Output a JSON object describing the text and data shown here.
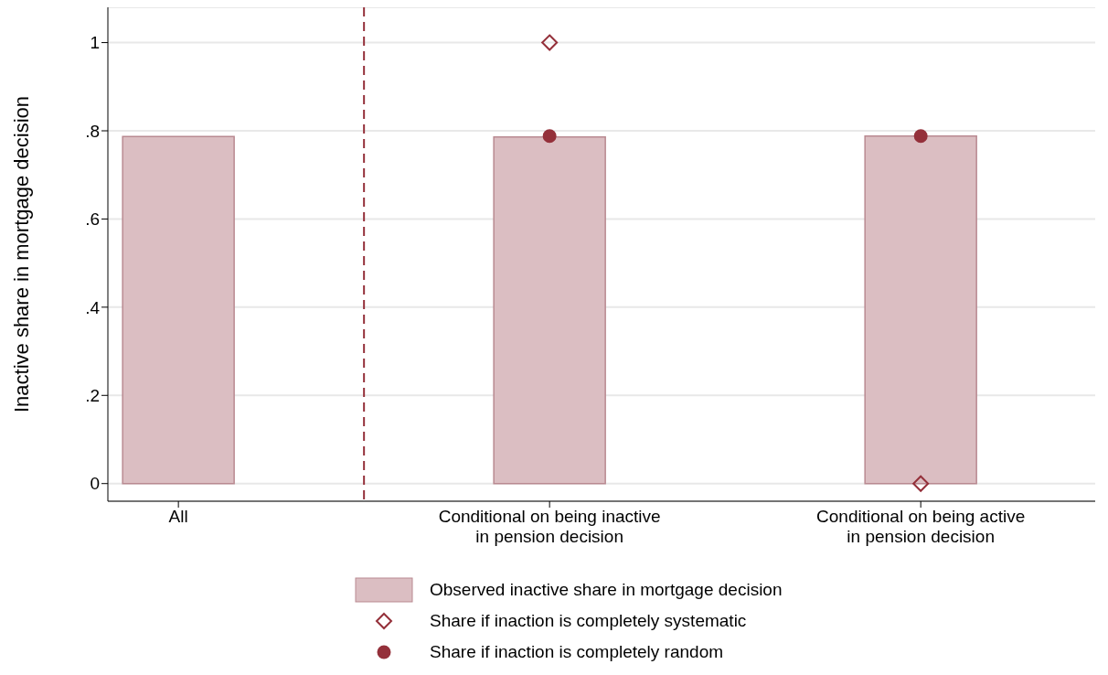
{
  "chart_data": {
    "type": "bar",
    "ylabel": "Inactive share in mortgage decision",
    "categories": [
      "All",
      "Conditional on being inactive in pension decision",
      "Conditional on being active in pension decision"
    ],
    "series": [
      {
        "name": "Observed inactive share in mortgage decision",
        "color": "#dbbec2",
        "values": [
          0.787,
          0.786,
          0.788
        ]
      },
      {
        "name": "Share if inaction is completely systematic",
        "type": "scatter",
        "marker": "diamond",
        "color": "#94303a",
        "values": [
          null,
          1,
          0
        ]
      },
      {
        "name": "Share if inaction is completely random",
        "type": "scatter",
        "marker": "circle",
        "color": "#94303a",
        "values": [
          null,
          0.788,
          0.788
        ]
      }
    ],
    "ylim": [
      -0.04,
      1.08
    ],
    "yticks": [
      0,
      {
        "value": 0.2,
        "label": ".2"
      },
      {
        "value": 0.4,
        "label": ".4"
      },
      {
        "value": 0.6,
        "label": ".6"
      },
      {
        "value": 0.8,
        "label": ".8"
      },
      1
    ],
    "grid": "y",
    "legend": "bottom"
  }
}
